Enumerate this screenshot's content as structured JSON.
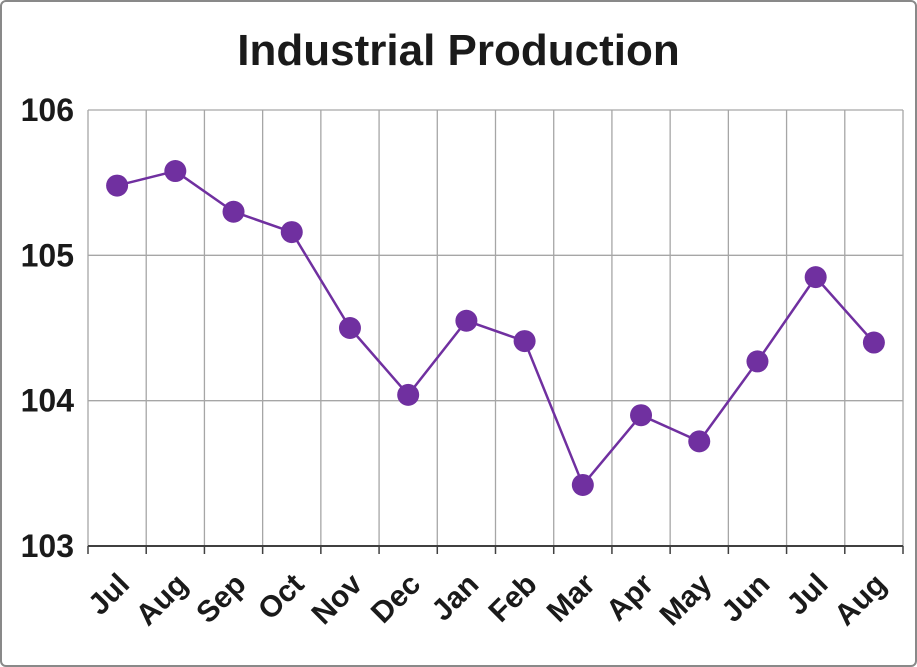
{
  "window": {
    "background_color": "#ffffff",
    "border_color": "#898989"
  },
  "chart_data": {
    "type": "line",
    "title": "Industrial Production",
    "categories": [
      "Jul",
      "Aug",
      "Sep",
      "Oct",
      "Nov",
      "Dec",
      "Jan",
      "Feb",
      "Mar",
      "Apr",
      "May",
      "Jun",
      "Jul",
      "Aug"
    ],
    "values": [
      105.48,
      105.58,
      105.3,
      105.16,
      104.5,
      104.04,
      104.55,
      104.41,
      103.42,
      103.9,
      103.72,
      104.27,
      104.85,
      104.4
    ],
    "xlabel": "",
    "ylabel": "",
    "ylim": [
      103,
      106
    ],
    "yticks": [
      103,
      104,
      105,
      106
    ],
    "grid": true,
    "legend_position": "none",
    "series_color": "#7030A0",
    "marker": "circle",
    "marker_radius": 11,
    "line_width": 2.5,
    "gridline_color": "#A6A6A6",
    "axis_color": "#404040",
    "text_color": "#1a1a1a"
  }
}
